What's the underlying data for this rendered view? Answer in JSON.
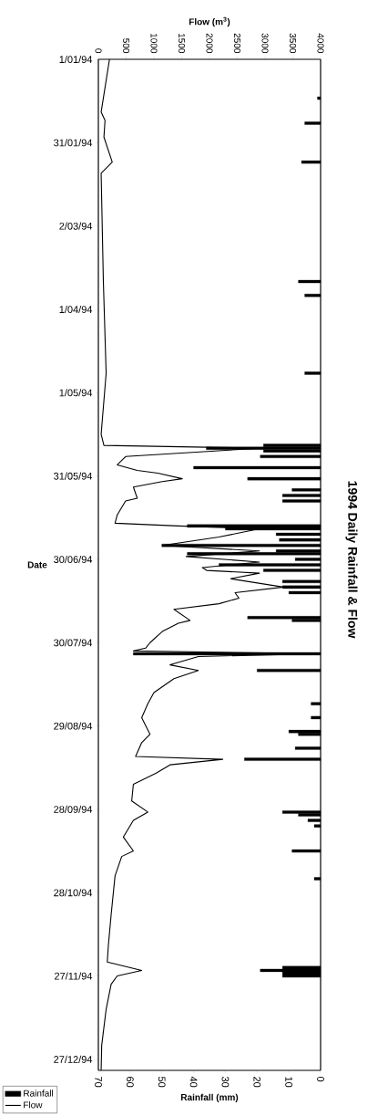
{
  "chart_data": {
    "type": "line",
    "orientation": "horizontal",
    "title": "1994 Daily Rainfall & Flow",
    "ylabel": "Date",
    "x2label": "Flow (m$^{3}$)",
    "xlabel": "Rainfall (mm)",
    "ylim": [
      "1994-12-31",
      "1994-01-01"
    ],
    "yticks": [
      {
        "value": "1994-01-01",
        "label": "1/01/94"
      },
      {
        "value": "1994-01-31",
        "label": "31/01/94"
      },
      {
        "value": "1994-03-02",
        "label": "2/03/94"
      },
      {
        "value": "1994-04-01",
        "label": "1/04/94"
      },
      {
        "value": "1994-05-01",
        "label": "1/05/94"
      },
      {
        "value": "1994-05-31",
        "label": "31/05/94"
      },
      {
        "value": "1994-06-30",
        "label": "30/06/94"
      },
      {
        "value": "1994-07-30",
        "label": "30/07/94"
      },
      {
        "value": "1994-08-29",
        "label": "29/08/94"
      },
      {
        "value": "1994-09-28",
        "label": "28/09/94"
      },
      {
        "value": "1994-10-28",
        "label": "28/10/94"
      },
      {
        "value": "1994-11-27",
        "label": "27/11/94"
      },
      {
        "value": "1994-12-27",
        "label": "27/12/94"
      }
    ],
    "x2lim": [
      0,
      4000
    ],
    "x2ticks": [
      0,
      500,
      1000,
      1500,
      2000,
      2500,
      3000,
      3500,
      4000
    ],
    "xlim": [
      70,
      0
    ],
    "xticks": [
      70,
      60,
      50,
      40,
      30,
      20,
      10,
      0
    ],
    "legend": "bottom left",
    "series": [
      {
        "name": "Rainfall",
        "type": "bar",
        "color": "#000000",
        "x": [
          "1994-01-15",
          "1994-01-24",
          "1994-02-07",
          "1994-03-22",
          "1994-03-27",
          "1994-04-24",
          "1994-05-20",
          "1994-05-21",
          "1994-05-22",
          "1994-05-24",
          "1994-05-28",
          "1994-06-01",
          "1994-06-05",
          "1994-06-07",
          "1994-06-09",
          "1994-06-18",
          "1994-06-19",
          "1994-06-21",
          "1994-06-23",
          "1994-06-25",
          "1994-06-27",
          "1994-06-28",
          "1994-06-30",
          "1994-07-02",
          "1994-07-04",
          "1994-07-08",
          "1994-07-10",
          "1994-07-12",
          "1994-07-21",
          "1994-07-22",
          "1994-08-03",
          "1994-08-09",
          "1994-08-21",
          "1994-08-26",
          "1994-08-31",
          "1994-09-01",
          "1994-09-06",
          "1994-09-10",
          "1994-09-29",
          "1994-09-30",
          "1994-10-02",
          "1994-10-04",
          "1994-10-13",
          "1994-10-23",
          "1994-11-24",
          "1994-11-25",
          "1994-11-26",
          "1994-11-27"
        ],
        "values": [
          1,
          5,
          6,
          7,
          5,
          5,
          18,
          36,
          18,
          19,
          40,
          23,
          9,
          12,
          12,
          42,
          30,
          14,
          13,
          50,
          14,
          42,
          8,
          32,
          18,
          12,
          12,
          10,
          23,
          9,
          59,
          20,
          3,
          3,
          10,
          7,
          8,
          24,
          12,
          7,
          4,
          2,
          9,
          2,
          12,
          19,
          12,
          12
        ]
      },
      {
        "name": "Flow",
        "axis": "x2",
        "color": "#000000",
        "x": [
          "1994-01-01",
          "1994-01-20",
          "1994-01-23",
          "1994-01-29",
          "1994-02-07",
          "1994-02-11",
          "1994-03-22",
          "1994-04-24",
          "1994-05-16",
          "1994-05-20",
          "1994-05-21",
          "1994-05-24",
          "1994-05-27",
          "1994-05-29",
          "1994-05-30",
          "1994-06-01",
          "1994-06-02",
          "1994-06-04",
          "1994-06-08",
          "1994-06-09",
          "1994-06-14",
          "1994-06-17",
          "1994-06-18",
          "1994-06-19",
          "1994-06-22",
          "1994-06-25",
          "1994-06-27",
          "1994-06-29",
          "1994-07-01",
          "1994-07-03",
          "1994-07-04",
          "1994-07-05",
          "1994-07-07",
          "1994-07-10",
          "1994-07-12",
          "1994-07-14",
          "1994-07-16",
          "1994-07-18",
          "1994-07-22",
          "1994-07-23",
          "1994-07-26",
          "1994-07-30",
          "1994-08-01",
          "1994-08-02",
          "1994-08-03",
          "1994-08-04",
          "1994-08-07",
          "1994-08-09",
          "1994-08-12",
          "1994-08-17",
          "1994-08-21",
          "1994-08-26",
          "1994-09-01",
          "1994-09-04",
          "1994-09-09",
          "1994-09-10",
          "1994-09-12",
          "1994-09-15",
          "1994-09-19",
          "1994-09-25",
          "1994-09-29",
          "1994-10-02",
          "1994-10-08",
          "1994-10-13",
          "1994-10-15",
          "1994-10-22",
          "1994-11-05",
          "1994-11-16",
          "1994-11-22",
          "1994-11-25",
          "1994-11-27",
          "1994-11-30",
          "1994-12-09",
          "1994-12-22",
          "1994-12-31"
        ],
        "values": [
          200,
          50,
          120,
          100,
          250,
          50,
          90,
          140,
          50,
          100,
          2900,
          490,
          340,
          700,
          1070,
          1510,
          1150,
          630,
          700,
          490,
          340,
          300,
          1440,
          2900,
          2170,
          1150,
          2900,
          1580,
          2900,
          1870,
          1950,
          2900,
          2380,
          3330,
          2460,
          2530,
          2170,
          1360,
          1650,
          1440,
          1150,
          930,
          850,
          630,
          3950,
          1800,
          1290,
          1800,
          1360,
          1000,
          890,
          780,
          930,
          780,
          670,
          2240,
          1290,
          1040,
          630,
          600,
          890,
          630,
          450,
          630,
          420,
          300,
          230,
          180,
          160,
          780,
          340,
          230,
          140,
          60,
          50
        ]
      }
    ]
  }
}
